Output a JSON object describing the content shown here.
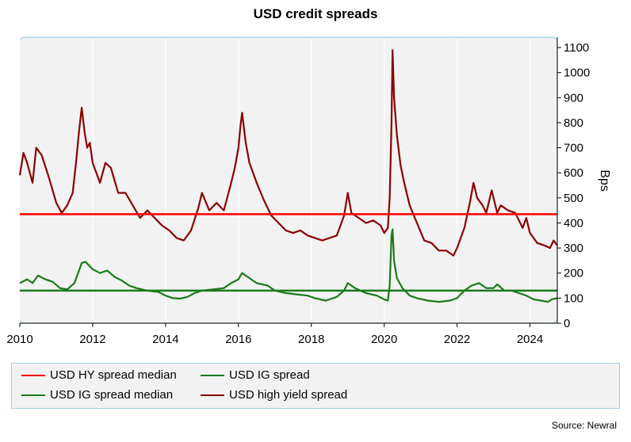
{
  "title": "USD credit spreads",
  "source": "Source: Newral",
  "legend": {
    "hy_median": "USD HY spread median",
    "ig_spread": "USD IG spread",
    "ig_median": "USD IG spread median",
    "hy_spread": "USD high yield spread"
  },
  "colors": {
    "hy_median": "#ff0000",
    "ig_spread": "#1a7a1a",
    "ig_median": "#1a7a1a",
    "hy_spread": "#8b0000",
    "plot_bg": "#f2f2f2",
    "frame": "#9dd0e6"
  },
  "chart_data": {
    "type": "line",
    "title": "USD credit spreads",
    "ylabel": "Bps",
    "xlabel": "",
    "xlim": [
      2010,
      2024.75
    ],
    "ylim": [
      0,
      1100
    ],
    "xticks": [
      "2010",
      "2012",
      "2014",
      "2016",
      "2018",
      "2020",
      "2022",
      "2024"
    ],
    "yticks": [
      "0",
      "100",
      "200",
      "300",
      "400",
      "500",
      "600",
      "700",
      "800",
      "900",
      "1000",
      "1100"
    ],
    "grid": true,
    "legend_position": "bottom",
    "medians": {
      "USD HY spread median": 435,
      "USD IG spread median": 130
    },
    "series": [
      {
        "name": "USD high yield spread",
        "x": [
          2010.0,
          2010.1,
          2010.2,
          2010.35,
          2010.45,
          2010.6,
          2010.8,
          2011.0,
          2011.15,
          2011.3,
          2011.45,
          2011.55,
          2011.62,
          2011.7,
          2011.78,
          2011.85,
          2011.92,
          2012.0,
          2012.2,
          2012.35,
          2012.5,
          2012.7,
          2012.9,
          2013.1,
          2013.3,
          2013.5,
          2013.7,
          2013.9,
          2014.1,
          2014.3,
          2014.5,
          2014.7,
          2014.9,
          2015.0,
          2015.2,
          2015.4,
          2015.6,
          2015.8,
          2015.9,
          2016.0,
          2016.05,
          2016.1,
          2016.2,
          2016.3,
          2016.5,
          2016.7,
          2016.9,
          2017.1,
          2017.3,
          2017.5,
          2017.7,
          2017.9,
          2018.1,
          2018.3,
          2018.5,
          2018.7,
          2018.9,
          2019.0,
          2019.1,
          2019.3,
          2019.5,
          2019.7,
          2019.9,
          2020.0,
          2020.1,
          2020.15,
          2020.2,
          2020.23,
          2020.27,
          2020.35,
          2020.45,
          2020.55,
          2020.7,
          2020.9,
          2021.1,
          2021.3,
          2021.5,
          2021.7,
          2021.9,
          2022.0,
          2022.2,
          2022.35,
          2022.45,
          2022.55,
          2022.7,
          2022.8,
          2022.95,
          2023.1,
          2023.2,
          2023.4,
          2023.6,
          2023.8,
          2023.9,
          2024.0,
          2024.2,
          2024.4,
          2024.55,
          2024.65,
          2024.75
        ],
        "y": [
          590,
          680,
          640,
          560,
          700,
          670,
          580,
          480,
          440,
          470,
          520,
          650,
          760,
          860,
          760,
          700,
          720,
          640,
          560,
          640,
          620,
          520,
          520,
          470,
          420,
          450,
          420,
          390,
          370,
          340,
          330,
          370,
          460,
          520,
          450,
          480,
          450,
          560,
          620,
          700,
          780,
          840,
          720,
          640,
          560,
          490,
          430,
          400,
          370,
          360,
          370,
          350,
          340,
          330,
          340,
          350,
          430,
          520,
          440,
          420,
          400,
          410,
          390,
          360,
          380,
          500,
          800,
          1090,
          900,
          750,
          630,
          560,
          470,
          400,
          330,
          320,
          290,
          290,
          270,
          300,
          380,
          480,
          560,
          500,
          470,
          440,
          530,
          440,
          470,
          450,
          440,
          380,
          420,
          360,
          320,
          310,
          300,
          330,
          310
        ]
      },
      {
        "name": "USD IG spread",
        "x": [
          2010.0,
          2010.2,
          2010.35,
          2010.5,
          2010.7,
          2010.9,
          2011.1,
          2011.3,
          2011.5,
          2011.6,
          2011.7,
          2011.8,
          2011.9,
          2012.0,
          2012.2,
          2012.4,
          2012.6,
          2012.8,
          2013.0,
          2013.2,
          2013.5,
          2013.8,
          2014.0,
          2014.2,
          2014.4,
          2014.6,
          2014.8,
          2015.0,
          2015.3,
          2015.6,
          2015.8,
          2016.0,
          2016.1,
          2016.2,
          2016.3,
          2016.5,
          2016.8,
          2017.0,
          2017.3,
          2017.6,
          2017.9,
          2018.1,
          2018.4,
          2018.7,
          2018.9,
          2019.0,
          2019.2,
          2019.5,
          2019.8,
          2020.0,
          2020.1,
          2020.15,
          2020.2,
          2020.23,
          2020.27,
          2020.35,
          2020.5,
          2020.7,
          2020.9,
          2021.2,
          2021.5,
          2021.8,
          2022.0,
          2022.2,
          2022.4,
          2022.6,
          2022.8,
          2023.0,
          2023.1,
          2023.3,
          2023.5,
          2023.7,
          2023.9,
          2024.1,
          2024.3,
          2024.5,
          2024.6,
          2024.75
        ],
        "y": [
          160,
          175,
          160,
          190,
          175,
          165,
          140,
          135,
          160,
          200,
          240,
          245,
          230,
          215,
          200,
          210,
          185,
          170,
          150,
          140,
          130,
          125,
          110,
          100,
          98,
          105,
          120,
          130,
          135,
          140,
          160,
          175,
          200,
          190,
          180,
          160,
          150,
          130,
          120,
          115,
          110,
          100,
          90,
          105,
          130,
          160,
          140,
          120,
          110,
          95,
          90,
          150,
          350,
          375,
          250,
          180,
          140,
          110,
          100,
          90,
          85,
          90,
          100,
          130,
          150,
          160,
          140,
          140,
          155,
          130,
          130,
          120,
          110,
          95,
          90,
          85,
          95,
          100
        ]
      }
    ]
  }
}
